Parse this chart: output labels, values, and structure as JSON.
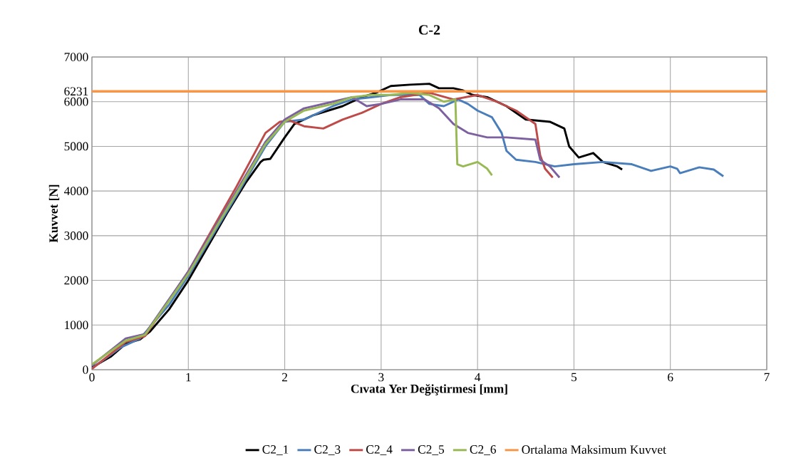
{
  "chart_data": {
    "type": "line",
    "title": "C-2",
    "xlabel": "Cıvata Yer Değiştirmesi [mm]",
    "ylabel": "Kuvvet [N]",
    "xlim": [
      0,
      7
    ],
    "xticks": [
      0,
      1,
      2,
      3,
      4,
      5,
      6,
      7
    ],
    "ylim": [
      0,
      7000
    ],
    "yticks": [
      0,
      1000,
      2000,
      3000,
      4000,
      5000,
      6000,
      6231,
      7000
    ],
    "grid": true,
    "legend": "bottom",
    "marker": "none",
    "line_style": "solid",
    "ref_lines": [
      {
        "axis": "y",
        "value": 6231,
        "label": "Ortalama Maksimum Kuvvet",
        "color": "#f79646"
      }
    ],
    "series": [
      {
        "name": "C2_1",
        "color": "#000000",
        "x": [
          0,
          0.2,
          0.35,
          0.5,
          0.6,
          0.8,
          1.0,
          1.2,
          1.4,
          1.6,
          1.75,
          1.78,
          1.85,
          2.0,
          2.1,
          2.3,
          2.6,
          2.8,
          2.95,
          3.1,
          3.3,
          3.5,
          3.6,
          3.75,
          3.85,
          3.95,
          4.1,
          4.3,
          4.5,
          4.75,
          4.9,
          4.95,
          5.05,
          5.2,
          5.3,
          5.45,
          5.5
        ],
        "values": [
          50,
          300,
          580,
          680,
          850,
          1350,
          2000,
          2750,
          3500,
          4200,
          4650,
          4700,
          4720,
          5200,
          5500,
          5700,
          5900,
          6100,
          6200,
          6350,
          6380,
          6400,
          6300,
          6300,
          6250,
          6150,
          6100,
          5900,
          5600,
          5550,
          5400,
          5000,
          4750,
          4850,
          4650,
          4550,
          4480
        ]
      },
      {
        "name": "C2_3",
        "color": "#4a7ebb",
        "x": [
          0,
          0.3,
          0.5,
          0.8,
          1.0,
          1.5,
          1.8,
          2.0,
          2.2,
          2.5,
          2.7,
          2.9,
          3.1,
          3.4,
          3.5,
          3.65,
          3.8,
          3.9,
          4.0,
          4.15,
          4.25,
          4.3,
          4.4,
          4.6,
          4.8,
          5.0,
          5.3,
          5.6,
          5.8,
          6.0,
          6.07,
          6.1,
          6.3,
          6.45,
          6.55
        ],
        "values": [
          30,
          500,
          700,
          1450,
          2100,
          3900,
          5000,
          5550,
          5600,
          5900,
          6050,
          6100,
          6150,
          6150,
          5950,
          5900,
          6050,
          5950,
          5800,
          5650,
          5300,
          4900,
          4700,
          4650,
          4550,
          4600,
          4650,
          4600,
          4450,
          4550,
          4500,
          4400,
          4530,
          4480,
          4330
        ]
      },
      {
        "name": "C2_4",
        "color": "#be4b48",
        "x": [
          0,
          0.35,
          0.55,
          1.0,
          1.5,
          1.8,
          1.95,
          2.05,
          2.2,
          2.4,
          2.6,
          2.8,
          3.0,
          3.2,
          3.5,
          3.75,
          4.0,
          4.2,
          4.4,
          4.6,
          4.65,
          4.7,
          4.78
        ],
        "values": [
          20,
          620,
          750,
          2200,
          4100,
          5300,
          5550,
          5580,
          5450,
          5400,
          5600,
          5750,
          5950,
          6100,
          6200,
          6050,
          6150,
          6000,
          5800,
          5500,
          4800,
          4500,
          4300
        ]
      },
      {
        "name": "C2_5",
        "color": "#7d60a0",
        "x": [
          0,
          0.35,
          0.55,
          1.0,
          1.5,
          1.8,
          2.0,
          2.2,
          2.5,
          2.7,
          2.85,
          3.0,
          3.2,
          3.45,
          3.6,
          3.75,
          3.9,
          4.1,
          4.3,
          4.6,
          4.65,
          4.75,
          4.85
        ],
        "values": [
          100,
          700,
          800,
          2200,
          4000,
          5100,
          5600,
          5850,
          6000,
          6100,
          5900,
          5950,
          6050,
          6050,
          5850,
          5500,
          5300,
          5200,
          5200,
          5150,
          4700,
          4550,
          4300
        ]
      },
      {
        "name": "C2_6",
        "color": "#98b954",
        "x": [
          0,
          0.35,
          0.55,
          1.0,
          1.5,
          1.8,
          2.0,
          2.2,
          2.5,
          2.7,
          2.9,
          3.1,
          3.3,
          3.5,
          3.65,
          3.77,
          3.79,
          3.85,
          4.0,
          4.1,
          4.15
        ],
        "values": [
          120,
          650,
          780,
          2150,
          3950,
          5050,
          5550,
          5800,
          5950,
          6100,
          6150,
          6150,
          6200,
          6150,
          6000,
          6050,
          4600,
          4550,
          4650,
          4500,
          4350
        ]
      }
    ]
  }
}
